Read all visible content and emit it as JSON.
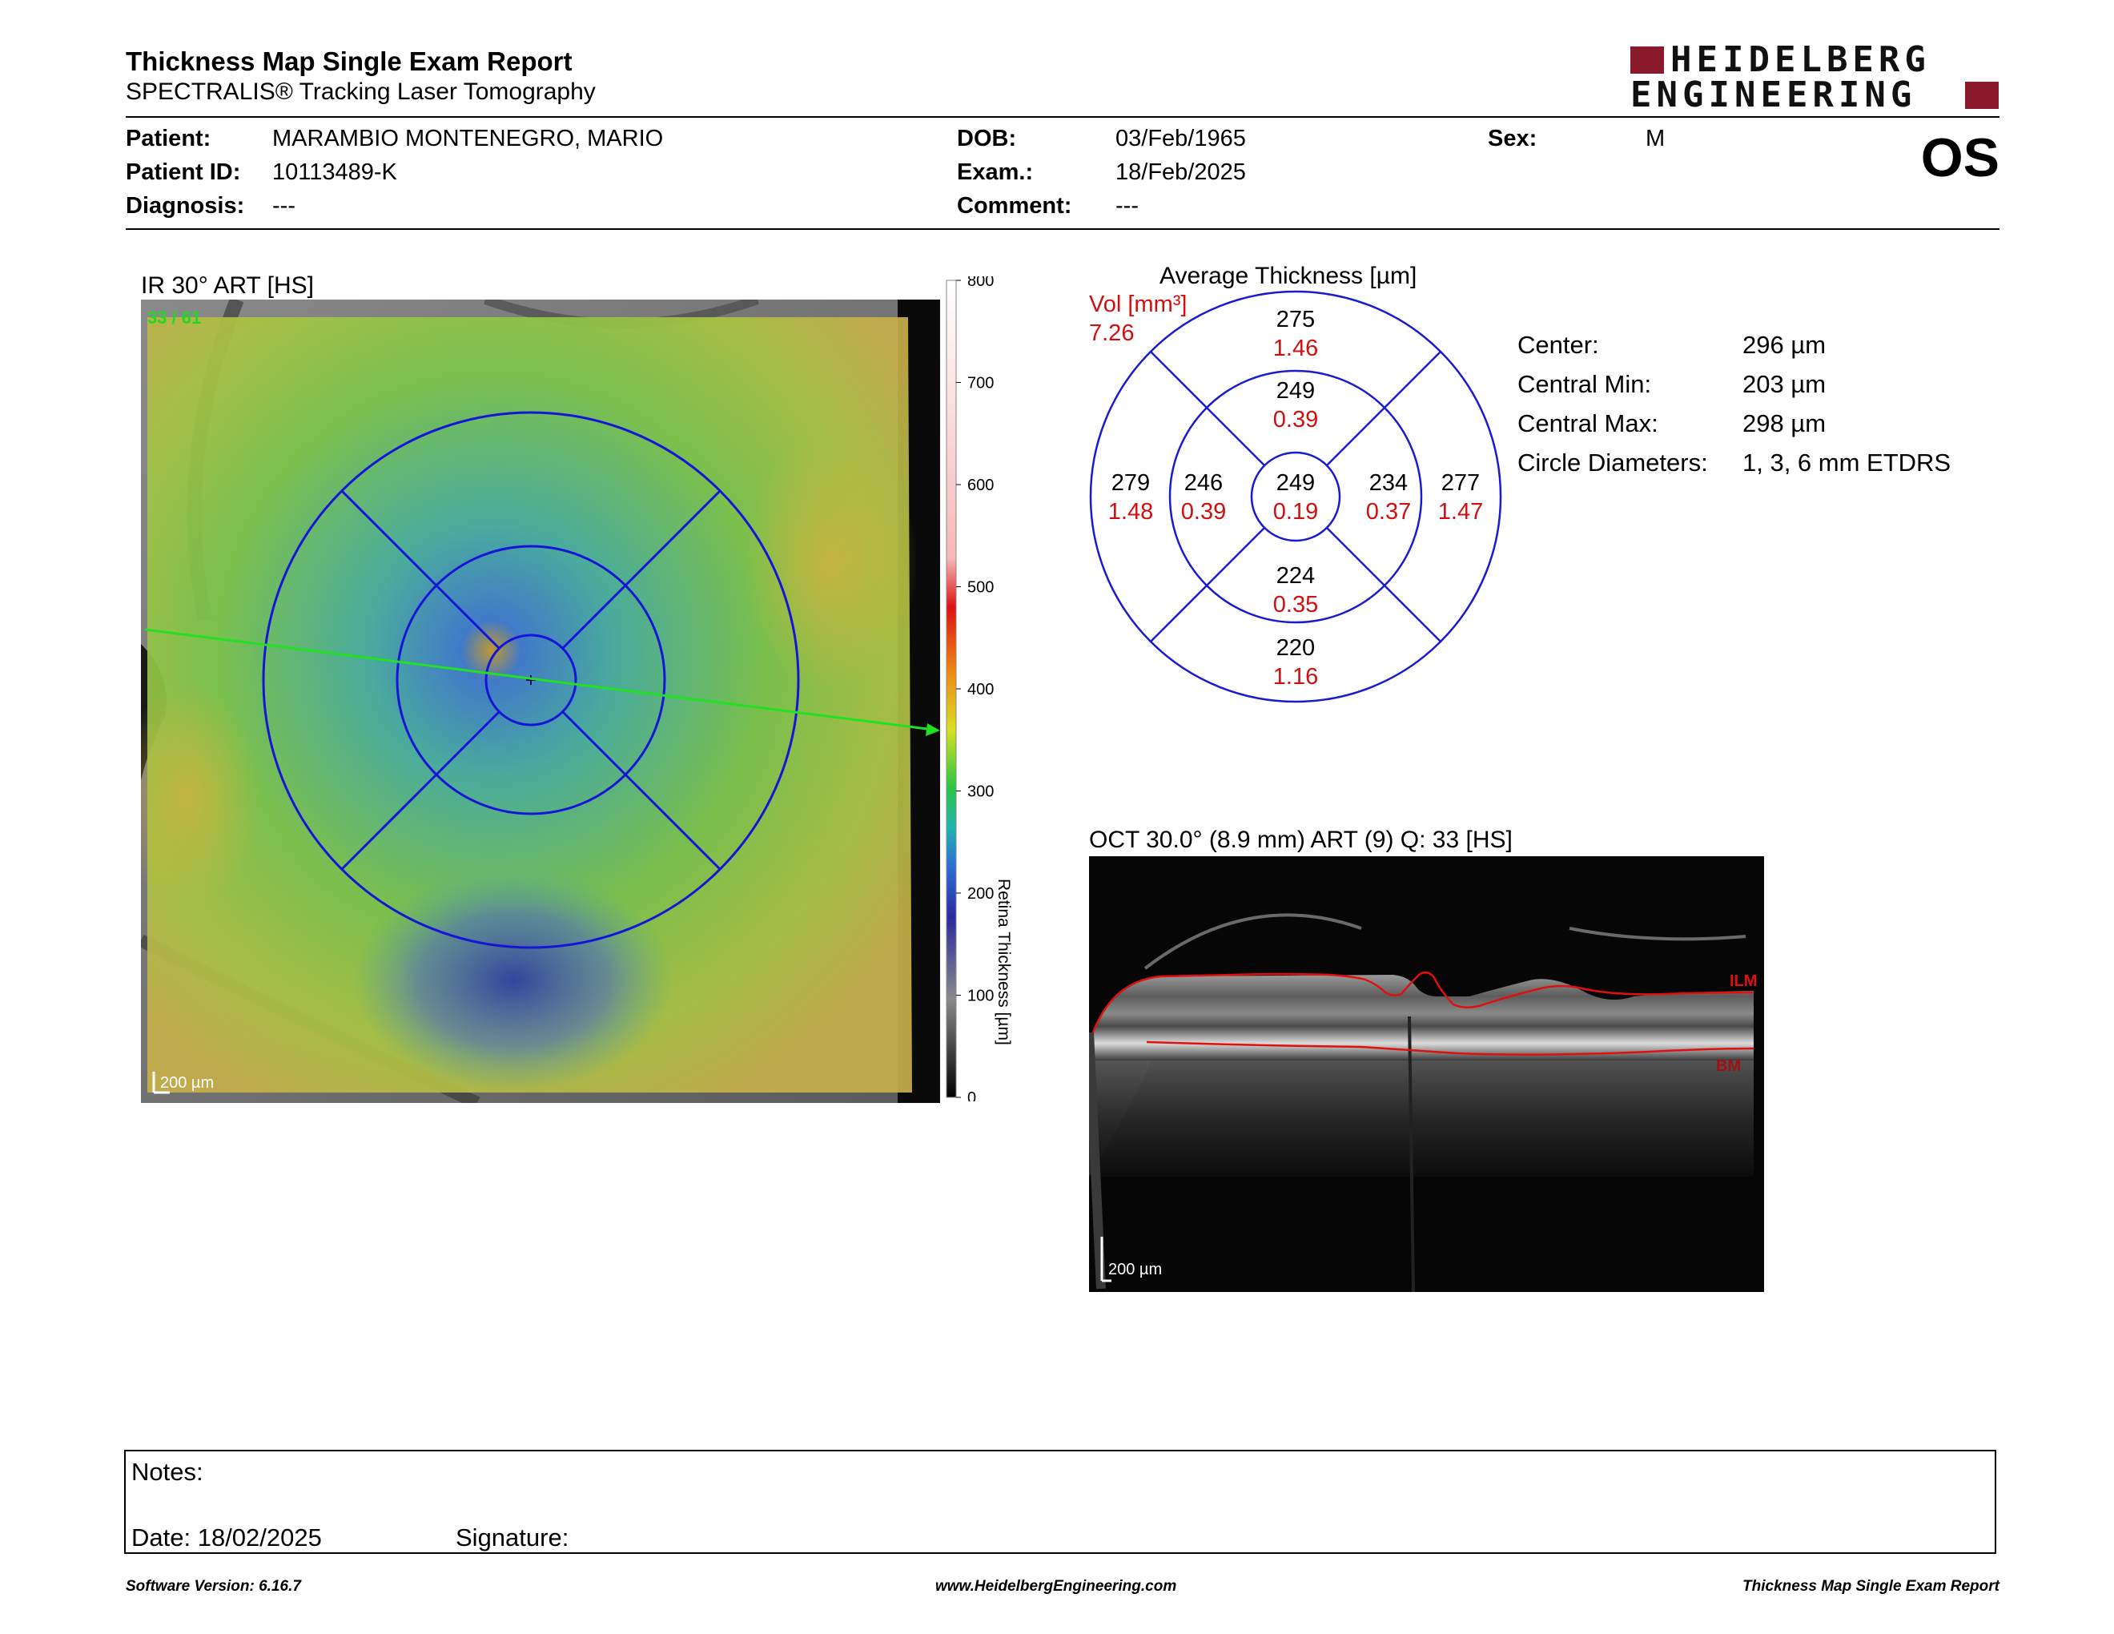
{
  "header": {
    "title": "Thickness Map Single Exam Report",
    "subtitle": "SPECTRALIS® Tracking Laser Tomography",
    "logo_line1": "HEIDELBERG",
    "logo_line2": "ENGINEERING",
    "eye": "OS"
  },
  "patient": {
    "patient_label": "Patient:",
    "patient_value": "MARAMBIO MONTENEGRO, MARIO",
    "id_label": "Patient ID:",
    "id_value": "10113489-K",
    "diagnosis_label": "Diagnosis:",
    "diagnosis_value": "---",
    "dob_label": "DOB:",
    "dob_value": "03/Feb/1965",
    "exam_label": "Exam.:",
    "exam_value": "18/Feb/2025",
    "comment_label": "Comment:",
    "comment_value": "---",
    "sex_label": "Sex:",
    "sex_value": "M"
  },
  "ir_panel": {
    "title": "IR 30° ART [HS]",
    "frame_counter": "33 / 61",
    "scale_bar": "200 µm",
    "colorbar_label": "Retina Thickness [µm]",
    "colorbar_ticks": [
      "800",
      "700",
      "600",
      "500",
      "400",
      "300",
      "200",
      "100",
      "0"
    ]
  },
  "etdrs": {
    "title": "Average Thickness [µm]",
    "vol_label": "Vol [mm³]",
    "vol_total": "7.26",
    "sectors": {
      "outer_superior": {
        "thickness": "275",
        "volume": "1.46"
      },
      "inner_superior": {
        "thickness": "249",
        "volume": "0.39"
      },
      "outer_temporal": {
        "thickness": "279",
        "volume": "1.48"
      },
      "inner_temporal": {
        "thickness": "246",
        "volume": "0.39"
      },
      "center": {
        "thickness": "249",
        "volume": "0.19"
      },
      "inner_nasal": {
        "thickness": "234",
        "volume": "0.37"
      },
      "outer_nasal": {
        "thickness": "277",
        "volume": "1.47"
      },
      "inner_inferior": {
        "thickness": "224",
        "volume": "0.35"
      },
      "outer_inferior": {
        "thickness": "220",
        "volume": "1.16"
      }
    }
  },
  "stats": {
    "center_label": "Center:",
    "center_value": "296 µm",
    "min_label": "Central Min:",
    "min_value": "203 µm",
    "max_label": "Central Max:",
    "max_value": "298 µm",
    "diam_label": "Circle Diameters:",
    "diam_value": "1, 3, 6 mm ETDRS"
  },
  "oct_panel": {
    "title": "OCT 30.0° (8.9 mm) ART (9) Q: 33 [HS]",
    "ilm_label": "ILM",
    "bm_label": "BM",
    "scale_bar": "200 µm"
  },
  "notes": {
    "notes_label": "Notes:",
    "date_label": "Date: 18/02/2025",
    "signature_label": "Signature:"
  },
  "footer": {
    "software": "Software Version: 6.16.7",
    "website": "www.HeidelbergEngineering.com",
    "report_name": "Thickness Map Single Exam Report"
  },
  "colors": {
    "brand": "#8b1a2c",
    "etdrs_grid": "#1a1ad0",
    "volume_text": "#d01010",
    "scan_line": "#22e022"
  }
}
